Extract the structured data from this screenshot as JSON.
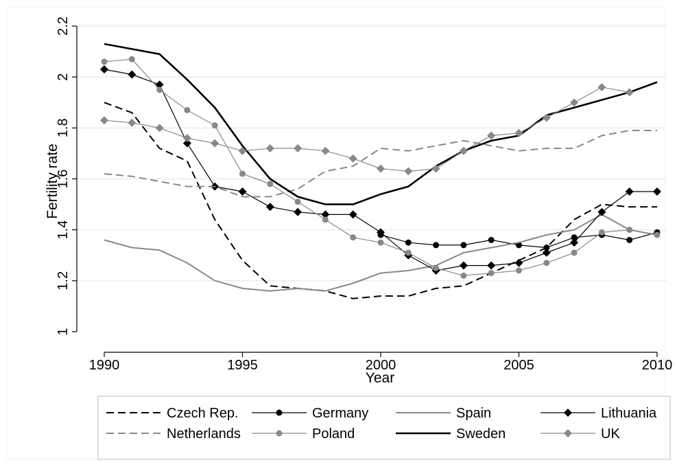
{
  "chart_data": {
    "type": "line",
    "title": "",
    "xlabel": "Year",
    "ylabel": "Fertility rate",
    "xlim": [
      1990,
      2010
    ],
    "ylim": [
      1,
      2.2
    ],
    "xticks": [
      1990,
      1995,
      2000,
      2005,
      2010
    ],
    "yticks": [
      1,
      1.2,
      1.4,
      1.6,
      1.8,
      2,
      2.2
    ],
    "ytick_labels": [
      "1",
      "1.2",
      "1.4",
      "1.6",
      "1.8",
      "2",
      "2.2"
    ],
    "grid": true,
    "legend_position": "bottom",
    "x": [
      1990,
      1991,
      1992,
      1993,
      1994,
      1995,
      1996,
      1997,
      1998,
      1999,
      2000,
      2001,
      2002,
      2003,
      2004,
      2005,
      2006,
      2007,
      2008,
      2009,
      2010
    ],
    "series": [
      {
        "name": "Czech Rep.",
        "color": "#000000",
        "style": "dashed",
        "marker": "none",
        "values": [
          1.9,
          1.86,
          1.72,
          1.67,
          1.44,
          1.28,
          1.18,
          1.17,
          1.16,
          1.13,
          1.14,
          1.14,
          1.17,
          1.18,
          1.23,
          1.28,
          1.33,
          1.44,
          1.5,
          1.49,
          1.49
        ]
      },
      {
        "name": "Germany",
        "color": "#000000",
        "style": "solid",
        "marker": "circle",
        "values": [
          null,
          null,
          null,
          null,
          null,
          null,
          null,
          null,
          null,
          null,
          1.38,
          1.35,
          1.34,
          1.34,
          1.36,
          1.34,
          1.33,
          1.37,
          1.38,
          1.36,
          1.39
        ]
      },
      {
        "name": "Spain",
        "color": "#888888",
        "style": "solid",
        "marker": "none",
        "values": [
          1.36,
          1.33,
          1.32,
          1.27,
          1.2,
          1.17,
          1.16,
          1.17,
          1.16,
          1.19,
          1.23,
          1.24,
          1.26,
          1.31,
          1.33,
          1.35,
          1.38,
          1.4,
          1.46,
          1.4,
          1.38
        ]
      },
      {
        "name": "Lithuania",
        "color": "#000000",
        "style": "solid",
        "marker": "diamond",
        "values": [
          2.03,
          2.01,
          1.97,
          1.74,
          1.57,
          1.55,
          1.49,
          1.47,
          1.46,
          1.46,
          1.39,
          1.3,
          1.24,
          1.26,
          1.26,
          1.27,
          1.31,
          1.35,
          1.47,
          1.55,
          1.55
        ]
      },
      {
        "name": "Netherlands",
        "color": "#888888",
        "style": "dashed",
        "marker": "none",
        "values": [
          1.62,
          1.61,
          1.59,
          1.57,
          1.57,
          1.53,
          1.53,
          1.56,
          1.63,
          1.65,
          1.72,
          1.71,
          1.73,
          1.75,
          1.73,
          1.71,
          1.72,
          1.72,
          1.77,
          1.79,
          1.79
        ]
      },
      {
        "name": "Poland",
        "color": "#888888",
        "style": "solid",
        "marker": "circle",
        "values": [
          2.06,
          2.07,
          1.95,
          1.87,
          1.81,
          1.62,
          1.58,
          1.51,
          1.44,
          1.37,
          1.35,
          1.31,
          1.25,
          1.22,
          1.23,
          1.24,
          1.27,
          1.31,
          1.39,
          1.4,
          1.38
        ]
      },
      {
        "name": "Sweden",
        "color": "#000000",
        "style": "solid-thick",
        "marker": "none",
        "values": [
          2.13,
          2.11,
          2.09,
          1.99,
          1.88,
          1.73,
          1.6,
          1.53,
          1.5,
          1.5,
          1.54,
          1.57,
          1.65,
          1.71,
          1.75,
          1.77,
          1.85,
          1.88,
          1.91,
          1.94,
          1.98
        ]
      },
      {
        "name": "UK",
        "color": "#888888",
        "style": "solid",
        "marker": "diamond",
        "values": [
          1.83,
          1.82,
          1.8,
          1.76,
          1.74,
          1.71,
          1.72,
          1.72,
          1.71,
          1.68,
          1.64,
          1.63,
          1.64,
          1.71,
          1.77,
          1.78,
          1.84,
          1.9,
          1.96,
          1.94,
          null
        ]
      }
    ]
  }
}
